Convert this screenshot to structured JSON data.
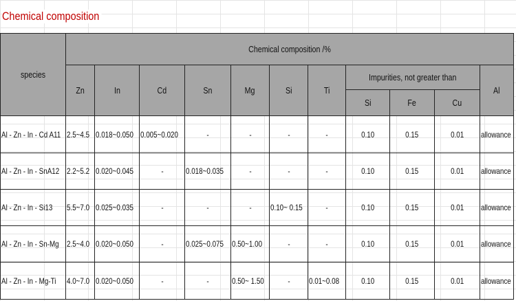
{
  "title": "Chemical composition",
  "table": {
    "header": {
      "species": "species",
      "group": "Chemical composition /%",
      "elements": [
        "Zn",
        "In",
        "Cd",
        "Sn",
        "Mg",
        "Si",
        "Ti"
      ],
      "impurities": "Impurities, not greater than",
      "impurity_elements": [
        "Si",
        "Fe",
        "Cu"
      ],
      "al": "Al"
    },
    "rows": [
      [
        "Al - Zn - In - Cd A11",
        "2.5~4.5",
        "0.018~0.050",
        "0.005~0.020",
        "-",
        "-",
        "-",
        "-",
        "0.10",
        "0.15",
        "0.01",
        "allowance"
      ],
      [
        "Al - Zn - In - SnA12",
        "2.2~5.2",
        "0.020~0.045",
        "-",
        "0.018~0.035",
        "-",
        "-",
        "-",
        "0.10",
        "0.15",
        "0.01",
        "allowance"
      ],
      [
        "Al - Zn - In - Si13",
        "5.5~7.0",
        "0.025~0.035",
        "-",
        "-",
        "-",
        "0.10~ 0.15",
        "-",
        "0.10",
        "0.15",
        "0.01",
        "allowance"
      ],
      [
        "Al - Zn - In - Sn-Mg",
        "2.5~4.0",
        "0.020~0.050",
        "-",
        "0.025~0.075",
        "0.50~1.00",
        "-",
        "-",
        "0.10",
        "0.15",
        "0.01",
        "allowance"
      ],
      [
        "Al - Zn - In - Mg-Ti",
        "4.0~7.0",
        "0.020~0.050",
        "-",
        "-",
        "0.50~ 1.50",
        "-",
        "0.01~0.08",
        "0.10",
        "0.15",
        "0.01",
        "allowance"
      ]
    ]
  }
}
